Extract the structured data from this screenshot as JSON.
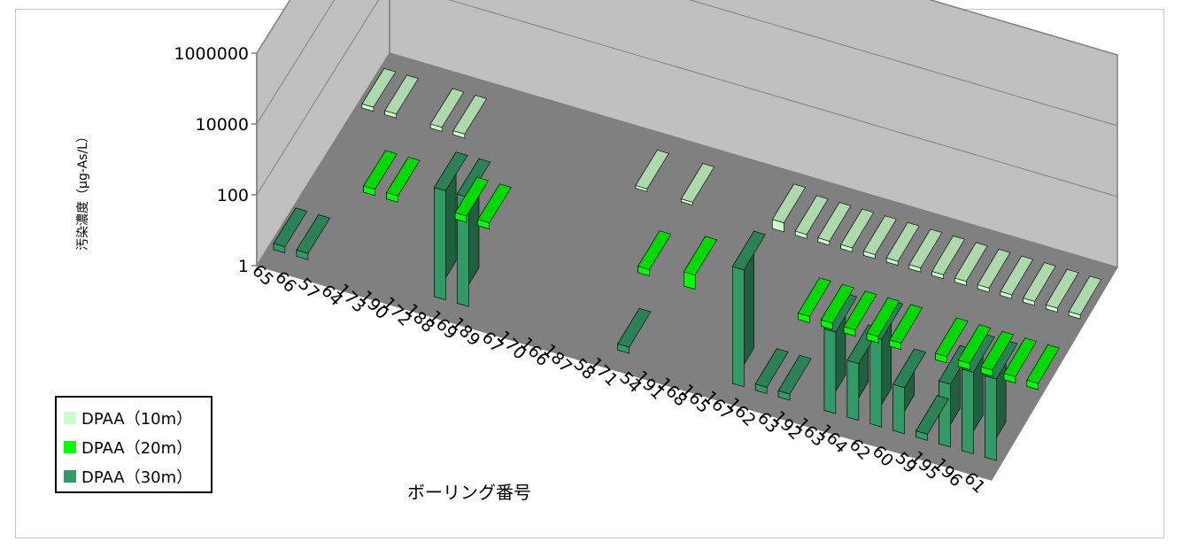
{
  "chart_data": {
    "type": "bar",
    "subtype": "3d-column-log",
    "title": "",
    "xlabel": "ボーリング番号",
    "ylabel": "汚染濃度（μg-As/L）",
    "yscale": "log",
    "ylim": [
      1,
      1000000
    ],
    "yticks": [
      "1",
      "100",
      "10000",
      "1000000"
    ],
    "grid": true,
    "legend_position": "bottom-left",
    "categories": [
      "65",
      "66",
      "57",
      "64",
      "173",
      "190",
      "172",
      "188",
      "169",
      "189",
      "67",
      "170",
      "166",
      "187",
      "58",
      "171",
      "54",
      "191",
      "168",
      "165",
      "167",
      "162",
      "63",
      "192",
      "163",
      "164",
      "62",
      "60",
      "59",
      "195",
      "196",
      "61"
    ],
    "series": [
      {
        "name": "DPAA（10m）",
        "color": "#ccffcc",
        "values": [
          1.3,
          1.3,
          null,
          1.3,
          1.3,
          null,
          null,
          null,
          null,
          null,
          null,
          null,
          1.2,
          null,
          1.2,
          null,
          null,
          null,
          1.8,
          1.3,
          1.3,
          1.3,
          1.3,
          1.3,
          1.3,
          1.3,
          1.3,
          1.3,
          1.3,
          1.3,
          1.3,
          1.3
        ]
      },
      {
        "name": "DPAA（20m）",
        "color": "#00ff00",
        "values": [
          null,
          null,
          1.5,
          1.5,
          null,
          null,
          1.5,
          1.5,
          null,
          null,
          null,
          null,
          null,
          null,
          1.5,
          null,
          2.5,
          null,
          null,
          null,
          null,
          1.5,
          1.5,
          1.5,
          1.5,
          1.5,
          null,
          1.5,
          1.5,
          1.5,
          1.5,
          1.5
        ]
      },
      {
        "name": "DPAA（30m）",
        "color": "#339966",
        "values": [
          1.5,
          1.5,
          null,
          null,
          null,
          null,
          null,
          1200,
          1200,
          null,
          null,
          null,
          null,
          null,
          null,
          1.5,
          null,
          null,
          null,
          null,
          2000,
          1.5,
          1.5,
          null,
          200,
          40,
          300,
          20,
          1.5,
          60,
          200,
          200
        ]
      }
    ]
  },
  "legend": {
    "items": [
      {
        "label": "DPAA（10m）",
        "color": "#ccffcc"
      },
      {
        "label": "DPAA（20m）",
        "color": "#00ff00"
      },
      {
        "label": "DPAA（30m）",
        "color": "#339966"
      }
    ]
  }
}
